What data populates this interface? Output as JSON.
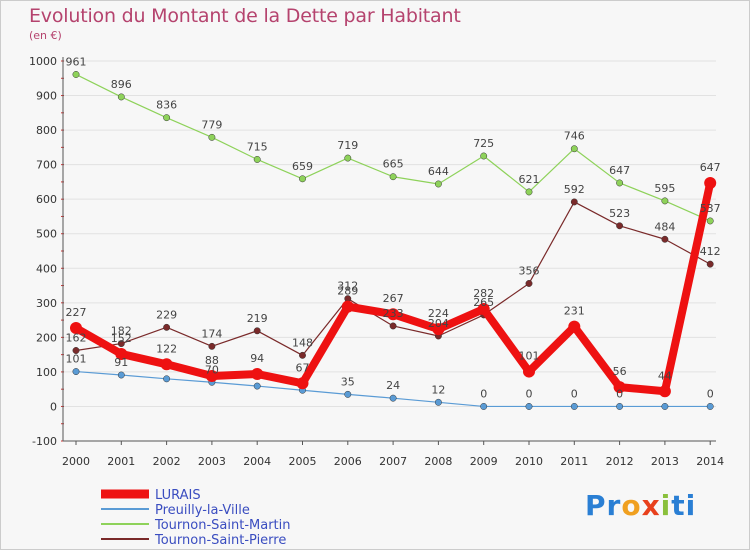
{
  "header": {
    "title": "Evolution du Montant de la Dette par Habitant",
    "unit": "(en €)"
  },
  "logo": {
    "parts": [
      "Pr",
      "o",
      "x",
      "i",
      "ti"
    ]
  },
  "colors": {
    "title": "#b5436e",
    "grid": "#e2e2e2",
    "axis": "#555555",
    "tick_label": "#333333",
    "value_label": "#444444"
  },
  "chart_data": {
    "type": "line",
    "x": [
      "2000",
      "2001",
      "2002",
      "2003",
      "2004",
      "2005",
      "2006",
      "2007",
      "2008",
      "2009",
      "2010",
      "2011",
      "2012",
      "2013",
      "2014"
    ],
    "ylim": [
      -100,
      1000
    ],
    "yticks": [
      -100,
      0,
      100,
      200,
      300,
      400,
      500,
      600,
      700,
      800,
      900,
      1000
    ],
    "grid": "horizontal",
    "legend_position": "bottom-left",
    "series": [
      {
        "name": "Tournon-Saint-Martin",
        "color": "#8ed25a",
        "values": [
          961,
          896,
          836,
          779,
          715,
          659,
          719,
          665,
          644,
          725,
          621,
          746,
          647,
          595,
          537
        ]
      },
      {
        "name": "Tournon-Saint-Pierre",
        "color": "#7a2a2a",
        "values": [
          162,
          182,
          229,
          174,
          219,
          148,
          312,
          233,
          204,
          265,
          356,
          592,
          523,
          484,
          412
        ]
      },
      {
        "name": "Preuilly-la-Ville",
        "color": "#5a9bd5",
        "values": [
          101,
          91,
          80,
          70,
          59,
          47,
          35,
          24,
          12,
          0,
          0,
          0,
          0,
          0,
          0
        ]
      },
      {
        "name": "LURAIS",
        "color": "#ee1111",
        "values": [
          227,
          152,
          122,
          88,
          94,
          67,
          289,
          267,
          224,
          282,
          101,
          231,
          56,
          44,
          647
        ]
      }
    ],
    "point_labels": {
      "LURAIS": [
        "227",
        "152",
        "122",
        "88",
        "94",
        "67",
        "289",
        "267",
        "224",
        "282",
        "101",
        "231",
        "56",
        "44",
        "647"
      ],
      "Preuilly-la-Ville": [
        "101",
        "91",
        "",
        "70",
        "",
        "",
        "35",
        "24",
        "12",
        "0",
        "0",
        "0",
        "0",
        "",
        "0"
      ],
      "Tournon-Saint-Martin": [
        "961",
        "896",
        "836",
        "779",
        "715",
        "659",
        "719",
        "665",
        "644",
        "725",
        "621",
        "746",
        "647",
        "595",
        "537"
      ],
      "Tournon-Saint-Pierre": [
        "162",
        "182",
        "229",
        "174",
        "219",
        "148",
        "312",
        "233",
        "204",
        "265",
        "356",
        "592",
        "523",
        "484",
        "412"
      ]
    },
    "legend_order": [
      "LURAIS",
      "Preuilly-la-Ville",
      "Tournon-Saint-Martin",
      "Tournon-Saint-Pierre"
    ]
  }
}
